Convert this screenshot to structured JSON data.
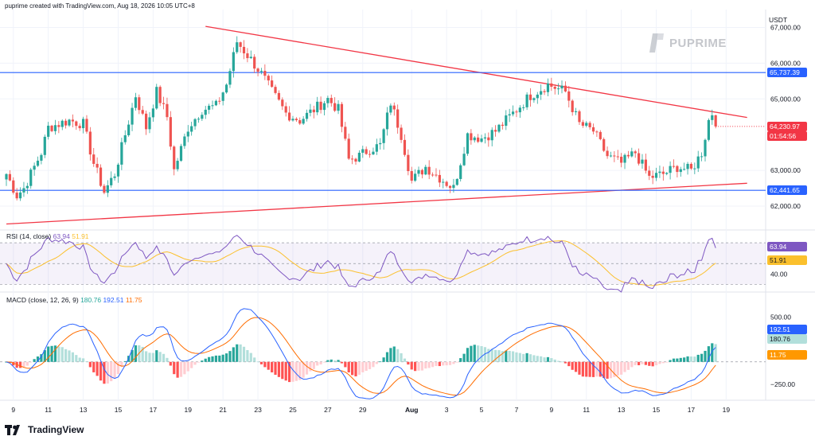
{
  "header": {
    "text": "puprime created with TradingView.com, Aug 18, 2026 10:05 UTC+8"
  },
  "watermark": {
    "text": "PUPRIME"
  },
  "footer": {
    "brand": "TradingView"
  },
  "colors": {
    "up": "#26a69a",
    "down": "#ef5350",
    "line_blue": "#2962ff",
    "trend_red": "#f23645",
    "rsi_line": "#7e57c2",
    "rsi_ma": "#fbc02d",
    "macd_line": "#2962ff",
    "signal_line": "#ff6d00"
  },
  "tags": {
    "currency": "USDT",
    "resistance": "65,737.39",
    "support": "62,441.65",
    "last_price": "64,230.97",
    "countdown": "01:54:56",
    "rsi_value": "63.94",
    "rsi_ma_value": "51.91",
    "macd_value": "192.51",
    "signal_value": "180.76",
    "hist_value": "11.75"
  },
  "chart_data": [
    {
      "type": "candlestick",
      "title": "",
      "ylabel": "USDT",
      "ylim": [
        61400,
        67500
      ],
      "y_ticks": [
        "67,000.00",
        "66,000.00",
        "65,000.00",
        "63,000.00",
        "62,000.00"
      ],
      "y_tick_values": [
        67000,
        66000,
        65000,
        63000,
        62000
      ],
      "x_ticks": [
        "9",
        "11",
        "13",
        "15",
        "17",
        "19",
        "21",
        "23",
        "25",
        "27",
        "29",
        "Aug",
        "3",
        "5",
        "7",
        "9",
        "11",
        "13",
        "15",
        "17",
        "19"
      ],
      "x_tick_bars": [
        2,
        12,
        22,
        32,
        42,
        52,
        62,
        72,
        82,
        92,
        102,
        116,
        126,
        136,
        146,
        156,
        166,
        176,
        186,
        196,
        206
      ],
      "bar_count": 212,
      "close_anchors": [
        [
          0,
          62900
        ],
        [
          3,
          62300
        ],
        [
          5,
          62500
        ],
        [
          10,
          63500
        ],
        [
          12,
          64200
        ],
        [
          18,
          64400
        ],
        [
          22,
          64300
        ],
        [
          25,
          63200
        ],
        [
          28,
          62400
        ],
        [
          31,
          62900
        ],
        [
          34,
          64000
        ],
        [
          37,
          65100
        ],
        [
          40,
          64200
        ],
        [
          43,
          65200
        ],
        [
          46,
          64500
        ],
        [
          48,
          63000
        ],
        [
          52,
          64200
        ],
        [
          56,
          64700
        ],
        [
          60,
          64800
        ],
        [
          63,
          65400
        ],
        [
          66,
          66600
        ],
        [
          70,
          66100
        ],
        [
          73,
          65700
        ],
        [
          76,
          65200
        ],
        [
          80,
          64600
        ],
        [
          84,
          64400
        ],
        [
          88,
          64700
        ],
        [
          92,
          65000
        ],
        [
          95,
          64700
        ],
        [
          98,
          63300
        ],
        [
          101,
          63400
        ],
        [
          104,
          63600
        ],
        [
          107,
          63700
        ],
        [
          110,
          64900
        ],
        [
          113,
          64000
        ],
        [
          116,
          62700
        ],
        [
          120,
          63100
        ],
        [
          124,
          62800
        ],
        [
          128,
          62500
        ],
        [
          132,
          64000
        ],
        [
          136,
          63900
        ],
        [
          140,
          64100
        ],
        [
          145,
          64600
        ],
        [
          150,
          65100
        ],
        [
          155,
          65400
        ],
        [
          160,
          65200
        ],
        [
          164,
          64300
        ],
        [
          168,
          64100
        ],
        [
          172,
          63400
        ],
        [
          176,
          63200
        ],
        [
          180,
          63500
        ],
        [
          184,
          62800
        ],
        [
          188,
          62900
        ],
        [
          192,
          63100
        ],
        [
          196,
          63000
        ],
        [
          199,
          63500
        ],
        [
          201,
          64400
        ],
        [
          202,
          64600
        ],
        [
          203,
          64230.97
        ]
      ],
      "horizontal_lines": [
        65737.39,
        62441.65
      ],
      "trendlines": [
        {
          "from": [
            57,
            67030
          ],
          "to": [
            212,
            64480
          ]
        },
        {
          "from": [
            0,
            61500
          ],
          "to": [
            212,
            62640
          ]
        }
      ],
      "last_price": 64230.97
    },
    {
      "type": "line",
      "title": "RSI (14, close)",
      "series": [
        {
          "name": "RSI",
          "value": "63.94"
        },
        {
          "name": "RSI-based MA",
          "value": "51.91"
        }
      ],
      "ylim": [
        25,
        80
      ],
      "y_ticks": [
        "40.00"
      ],
      "y_tick_values": [
        40
      ],
      "bands": [
        30,
        50,
        70
      ]
    },
    {
      "type": "histogram",
      "title": "MACD (close, 12, 26, 9)",
      "series": [
        {
          "name": "MACD",
          "value": "192.51"
        },
        {
          "name": "Signal",
          "value": "180.76"
        },
        {
          "name": "Histogram",
          "value": "11.75"
        }
      ],
      "ylim": [
        -400,
        750
      ],
      "y_ticks": [
        "500.00",
        "−250.00"
      ],
      "y_tick_values": [
        500,
        -250
      ]
    }
  ]
}
